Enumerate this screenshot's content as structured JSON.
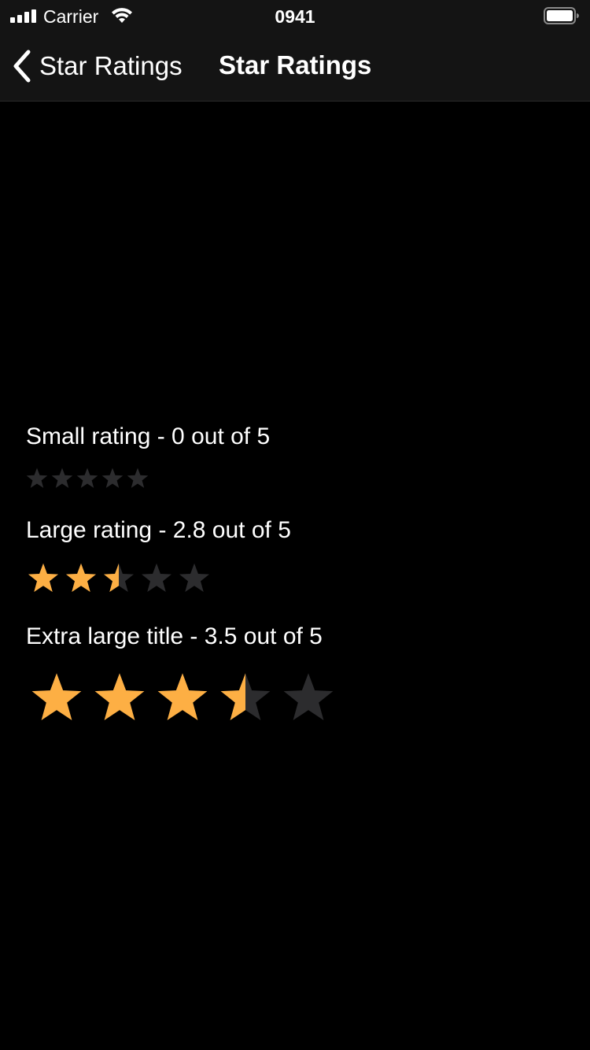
{
  "status_bar": {
    "carrier": "Carrier",
    "time": "0941"
  },
  "nav": {
    "back_label": "Star Ratings",
    "title": "Star Ratings"
  },
  "colors": {
    "star_filled": "#FDAF44",
    "star_empty": "#2C2C2E",
    "background": "#000000",
    "bar_background": "#141414"
  },
  "ratings": [
    {
      "label": "Small rating - 0 out of 5",
      "value": 0,
      "max": 5,
      "size": "small"
    },
    {
      "label": "Large rating - 2.8 out of 5",
      "value": 2.8,
      "max": 5,
      "size": "large"
    },
    {
      "label": "Extra large title - 3.5 out of 5",
      "value": 3.5,
      "max": 5,
      "size": "extra-large"
    }
  ]
}
